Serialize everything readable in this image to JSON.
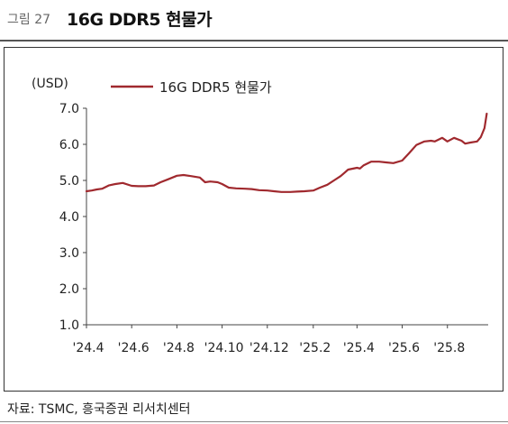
{
  "header": {
    "figure_label": "그림 27",
    "title": "16G DDR5 현물가"
  },
  "source": "자료: TSMC, 흥국증권 리서치센터",
  "colors": {
    "series": "#a0292e",
    "axis": "#444444",
    "rule": "#555555"
  },
  "chart_data": {
    "type": "line",
    "title": "16G DDR5 현물가",
    "ylabel": "(USD)",
    "xlabel": "",
    "ylim": [
      1.0,
      7.0
    ],
    "y_ticks": [
      "7.0",
      "6.0",
      "5.0",
      "4.0",
      "3.0",
      "2.0",
      "1.0"
    ],
    "x_ticks": [
      "'24.4",
      "'24.6",
      "'24.8",
      "'24.10",
      "'24.12",
      "'25.2",
      "'25.4",
      "'25.6",
      "'25.8"
    ],
    "legend_position": "top",
    "grid": false,
    "series": [
      {
        "name": "16G DDR5 현물가",
        "x": [
          "2024-04-01",
          "2024-04-08",
          "2024-04-15",
          "2024-04-22",
          "2024-05-01",
          "2024-05-10",
          "2024-05-20",
          "2024-06-01",
          "2024-06-10",
          "2024-06-20",
          "2024-07-01",
          "2024-07-10",
          "2024-07-20",
          "2024-08-01",
          "2024-08-10",
          "2024-08-20",
          "2024-09-01",
          "2024-09-08",
          "2024-09-15",
          "2024-09-25",
          "2024-10-01",
          "2024-10-10",
          "2024-10-20",
          "2024-11-01",
          "2024-11-10",
          "2024-11-20",
          "2024-12-01",
          "2024-12-10",
          "2024-12-20",
          "2025-01-01",
          "2025-01-10",
          "2025-01-20",
          "2025-02-01",
          "2025-02-10",
          "2025-02-20",
          "2025-03-01",
          "2025-03-10",
          "2025-03-20",
          "2025-04-01",
          "2025-04-05",
          "2025-04-10",
          "2025-04-20",
          "2025-05-01",
          "2025-05-10",
          "2025-05-20",
          "2025-06-01",
          "2025-06-10",
          "2025-06-20",
          "2025-07-01",
          "2025-07-10",
          "2025-07-15",
          "2025-07-25",
          "2025-08-01",
          "2025-08-10",
          "2025-08-20",
          "2025-08-25",
          "2025-09-01",
          "2025-09-10",
          "2025-09-15",
          "2025-09-20",
          "2025-09-23"
        ],
        "values": [
          4.7,
          4.72,
          4.75,
          4.77,
          4.86,
          4.9,
          4.93,
          4.85,
          4.84,
          4.84,
          4.86,
          4.95,
          5.03,
          5.13,
          5.15,
          5.12,
          5.08,
          4.95,
          4.97,
          4.95,
          4.9,
          4.8,
          4.78,
          4.77,
          4.76,
          4.73,
          4.72,
          4.7,
          4.68,
          4.68,
          4.69,
          4.7,
          4.72,
          4.8,
          4.88,
          5.0,
          5.12,
          5.3,
          5.35,
          5.33,
          5.42,
          5.52,
          5.52,
          5.5,
          5.48,
          5.55,
          5.75,
          5.98,
          6.08,
          6.1,
          6.08,
          6.18,
          6.08,
          6.18,
          6.1,
          6.02,
          6.05,
          6.08,
          6.2,
          6.45,
          6.85
        ]
      }
    ]
  }
}
